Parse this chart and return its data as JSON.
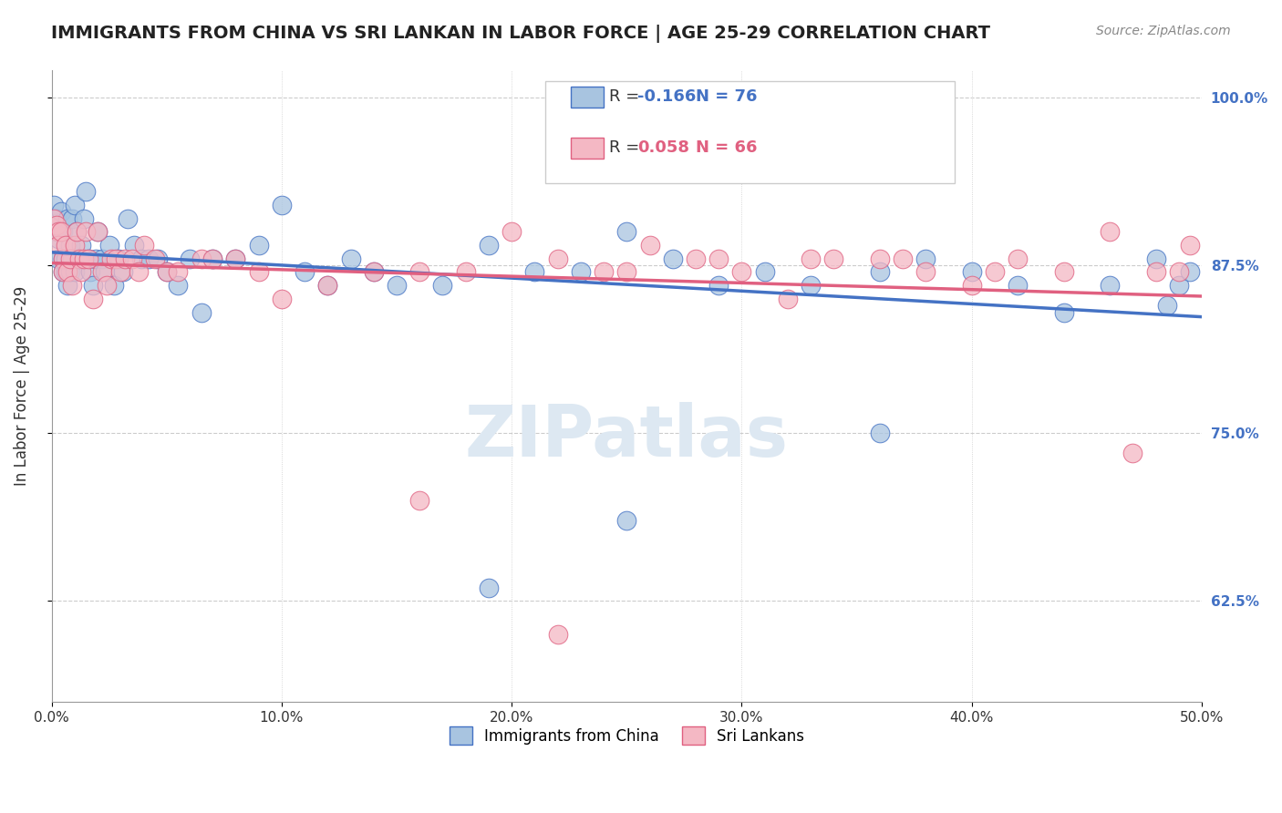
{
  "title": "IMMIGRANTS FROM CHINA VS SRI LANKAN IN LABOR FORCE | AGE 25-29 CORRELATION CHART",
  "source": "Source: ZipAtlas.com",
  "ylabel": "In Labor Force | Age 25-29",
  "xmin": 0.0,
  "xmax": 0.5,
  "ymin": 0.55,
  "ymax": 1.02,
  "yticks": [
    0.625,
    0.75,
    0.875,
    1.0
  ],
  "ytick_labels": [
    "62.5%",
    "75.0%",
    "87.5%",
    "100.0%"
  ],
  "china_R": -0.166,
  "china_N": 76,
  "sri_R": 0.058,
  "sri_N": 66,
  "china_color": "#a8c4e0",
  "china_line_color": "#4472c4",
  "sri_color": "#f4b8c4",
  "sri_line_color": "#e06080",
  "watermark": "ZIPatlas",
  "legend_label_china": "Immigrants from China",
  "legend_label_sri": "Sri Lankans",
  "china_x": [
    0.001,
    0.002,
    0.002,
    0.003,
    0.003,
    0.004,
    0.004,
    0.005,
    0.005,
    0.005,
    0.006,
    0.006,
    0.007,
    0.007,
    0.008,
    0.008,
    0.009,
    0.009,
    0.01,
    0.01,
    0.011,
    0.012,
    0.013,
    0.014,
    0.015,
    0.016,
    0.017,
    0.018,
    0.019,
    0.02,
    0.022,
    0.023,
    0.025,
    0.027,
    0.029,
    0.031,
    0.033,
    0.036,
    0.039,
    0.042,
    0.046,
    0.05,
    0.055,
    0.06,
    0.065,
    0.07,
    0.08,
    0.09,
    0.1,
    0.11,
    0.12,
    0.13,
    0.14,
    0.15,
    0.17,
    0.19,
    0.21,
    0.23,
    0.25,
    0.27,
    0.29,
    0.31,
    0.33,
    0.36,
    0.38,
    0.4,
    0.42,
    0.44,
    0.46,
    0.48,
    0.49,
    0.495,
    0.25,
    0.19,
    0.485,
    0.36
  ],
  "china_y": [
    0.92,
    0.91,
    0.9,
    0.895,
    0.88,
    0.915,
    0.9,
    0.87,
    0.88,
    0.9,
    0.88,
    0.87,
    0.91,
    0.86,
    0.89,
    0.87,
    0.88,
    0.91,
    0.92,
    0.87,
    0.9,
    0.88,
    0.89,
    0.91,
    0.93,
    0.88,
    0.87,
    0.86,
    0.88,
    0.9,
    0.88,
    0.87,
    0.89,
    0.86,
    0.88,
    0.87,
    0.91,
    0.89,
    0.88,
    0.88,
    0.88,
    0.87,
    0.86,
    0.88,
    0.84,
    0.88,
    0.88,
    0.89,
    0.92,
    0.87,
    0.86,
    0.88,
    0.87,
    0.86,
    0.86,
    0.89,
    0.87,
    0.87,
    0.9,
    0.88,
    0.86,
    0.87,
    0.86,
    0.87,
    0.88,
    0.87,
    0.86,
    0.84,
    0.86,
    0.88,
    0.86,
    0.87,
    0.685,
    0.635,
    0.845,
    0.75
  ],
  "sri_x": [
    0.001,
    0.002,
    0.003,
    0.003,
    0.004,
    0.005,
    0.005,
    0.006,
    0.007,
    0.008,
    0.009,
    0.01,
    0.011,
    0.012,
    0.013,
    0.014,
    0.015,
    0.016,
    0.018,
    0.02,
    0.022,
    0.024,
    0.026,
    0.028,
    0.03,
    0.032,
    0.035,
    0.038,
    0.04,
    0.045,
    0.05,
    0.055,
    0.065,
    0.07,
    0.08,
    0.09,
    0.1,
    0.12,
    0.14,
    0.16,
    0.18,
    0.2,
    0.22,
    0.24,
    0.26,
    0.28,
    0.3,
    0.32,
    0.34,
    0.36,
    0.38,
    0.4,
    0.42,
    0.44,
    0.46,
    0.48,
    0.49,
    0.495,
    0.22,
    0.47,
    0.33,
    0.29,
    0.16,
    0.41,
    0.25,
    0.37
  ],
  "sri_y": [
    0.91,
    0.905,
    0.9,
    0.89,
    0.9,
    0.88,
    0.87,
    0.89,
    0.87,
    0.88,
    0.86,
    0.89,
    0.9,
    0.88,
    0.87,
    0.88,
    0.9,
    0.88,
    0.85,
    0.9,
    0.87,
    0.86,
    0.88,
    0.88,
    0.87,
    0.88,
    0.88,
    0.87,
    0.89,
    0.88,
    0.87,
    0.87,
    0.88,
    0.88,
    0.88,
    0.87,
    0.85,
    0.86,
    0.87,
    0.87,
    0.87,
    0.9,
    0.88,
    0.87,
    0.89,
    0.88,
    0.87,
    0.85,
    0.88,
    0.88,
    0.87,
    0.86,
    0.88,
    0.87,
    0.9,
    0.87,
    0.87,
    0.89,
    0.6,
    0.735,
    0.88,
    0.88,
    0.7,
    0.87,
    0.87,
    0.88
  ]
}
